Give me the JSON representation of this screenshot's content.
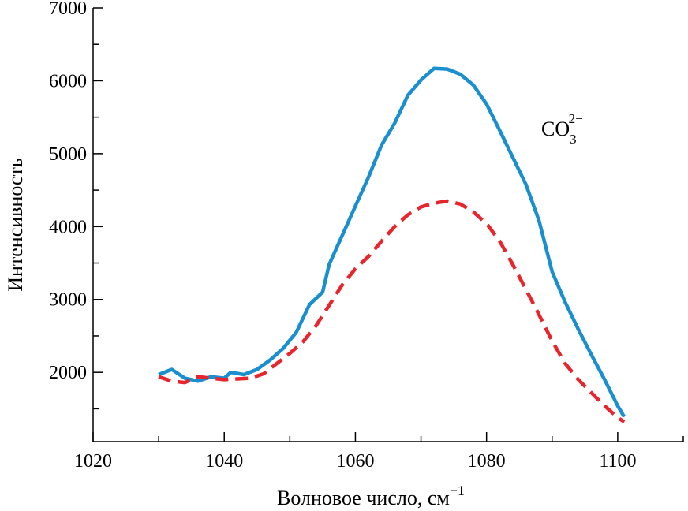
{
  "chart_data": {
    "type": "line",
    "xlabel": "Волновое число, см",
    "xlabel_sup": "−1",
    "ylabel": "Интенсивность",
    "xlim": [
      1020,
      1110
    ],
    "ylim": [
      1050,
      7000
    ],
    "xticks": [
      1020,
      1040,
      1060,
      1080,
      1100
    ],
    "yticks": [
      2000,
      3000,
      4000,
      5000,
      6000,
      7000
    ],
    "grid": false,
    "annotation": {
      "base": "CO",
      "sub": "3",
      "sup": "2−"
    },
    "series": [
      {
        "color": "#1a8fd0",
        "style": "solid",
        "x": [
          1030,
          1032,
          1034,
          1036,
          1038,
          1040,
          1041,
          1043,
          1045,
          1047,
          1049,
          1051,
          1053,
          1055,
          1056,
          1058,
          1060,
          1062,
          1064,
          1066,
          1068,
          1070,
          1072,
          1074,
          1076,
          1078,
          1080,
          1082,
          1084,
          1086,
          1088,
          1090,
          1092,
          1094,
          1096,
          1098,
          1100,
          1101
        ],
        "y": [
          1970,
          2040,
          1920,
          1880,
          1940,
          1920,
          2000,
          1970,
          2040,
          2170,
          2330,
          2550,
          2930,
          3100,
          3480,
          3880,
          4280,
          4680,
          5120,
          5420,
          5800,
          6010,
          6170,
          6160,
          6090,
          5940,
          5680,
          5320,
          4950,
          4580,
          4080,
          3380,
          2960,
          2590,
          2240,
          1900,
          1540,
          1390
        ]
      },
      {
        "color": "#e8242c",
        "style": "dashed",
        "x": [
          1030,
          1032,
          1034,
          1036,
          1038,
          1040,
          1042,
          1044,
          1046,
          1048,
          1050,
          1052,
          1054,
          1056,
          1058,
          1060,
          1062,
          1064,
          1066,
          1068,
          1070,
          1072,
          1074,
          1076,
          1078,
          1080,
          1082,
          1084,
          1086,
          1088,
          1090,
          1092,
          1094,
          1096,
          1098,
          1100,
          1101
        ],
        "y": [
          1940,
          1880,
          1860,
          1940,
          1920,
          1900,
          1910,
          1920,
          1980,
          2120,
          2260,
          2420,
          2640,
          2920,
          3200,
          3420,
          3590,
          3800,
          4000,
          4160,
          4270,
          4320,
          4350,
          4310,
          4200,
          4040,
          3800,
          3480,
          3140,
          2790,
          2430,
          2120,
          1900,
          1720,
          1540,
          1380,
          1320
        ]
      }
    ]
  }
}
